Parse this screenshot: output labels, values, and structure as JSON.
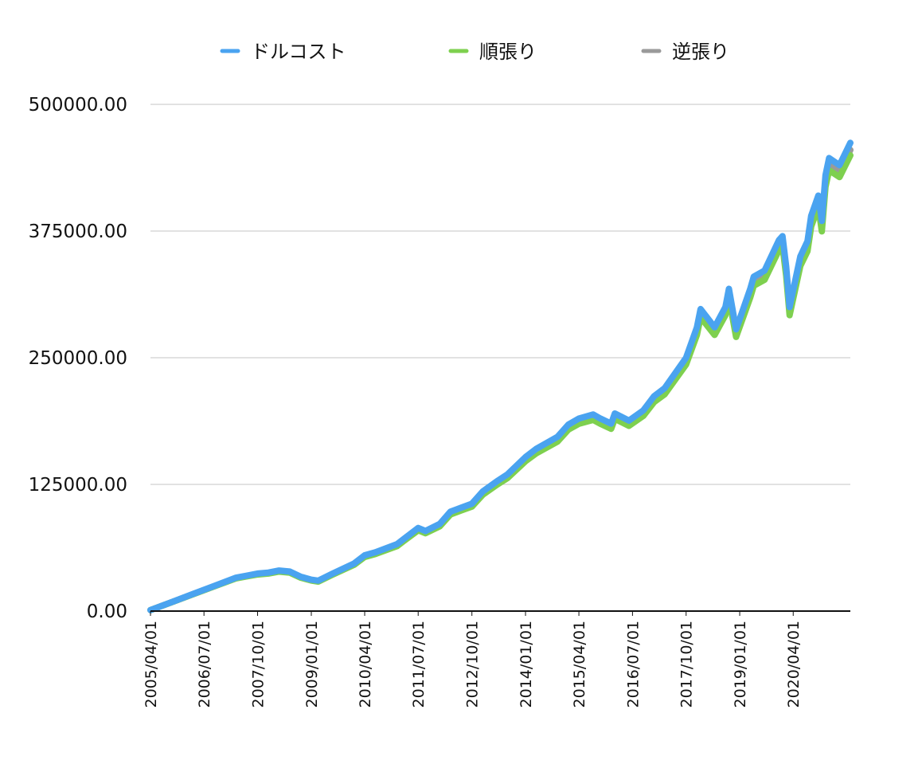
{
  "chart_data": {
    "type": "line",
    "title": "",
    "xlabel": "",
    "ylabel": "",
    "ylim": [
      0,
      500000
    ],
    "yticks": [
      0,
      125000,
      250000,
      375000,
      500000
    ],
    "ytick_labels": [
      "0.00",
      "125000.00",
      "250000.00",
      "375000.00",
      "500000.00"
    ],
    "xtick_labels": [
      "2005/04/01",
      "2006/07/01",
      "2007/10/01",
      "2009/01/01",
      "2010/04/01",
      "2011/07/01",
      "2012/10/01",
      "2014/01/01",
      "2015/04/01",
      "2016/07/01",
      "2017/10/01",
      "2019/01/01",
      "2020/04/01"
    ],
    "x_start": "2005/04/01",
    "x_end": "2021/08/01",
    "grid": true,
    "legend_position": "top",
    "series": [
      {
        "name": "ドルコスト",
        "color": "#4aa3f0",
        "x": [
          "2005/04/01",
          "2005/10/01",
          "2006/04/01",
          "2006/10/01",
          "2007/04/01",
          "2007/07/01",
          "2007/10/01",
          "2008/01/01",
          "2008/04/01",
          "2008/07/01",
          "2008/10/01",
          "2009/01/01",
          "2009/03/01",
          "2009/07/01",
          "2010/01/01",
          "2010/04/01",
          "2010/07/01",
          "2011/01/01",
          "2011/04/01",
          "2011/07/01",
          "2011/09/01",
          "2012/01/01",
          "2012/04/01",
          "2012/07/01",
          "2012/10/01",
          "2013/01/01",
          "2013/05/01",
          "2013/08/01",
          "2014/01/01",
          "2014/04/01",
          "2014/10/01",
          "2015/01/01",
          "2015/04/01",
          "2015/08/01",
          "2015/10/01",
          "2016/01/01",
          "2016/02/01",
          "2016/06/01",
          "2016/10/01",
          "2017/01/01",
          "2017/04/01",
          "2017/10/01",
          "2018/01/01",
          "2018/02/01",
          "2018/06/01",
          "2018/09/01",
          "2018/10/01",
          "2018/12/01",
          "2019/04/01",
          "2019/05/01",
          "2019/08/01",
          "2019/12/01",
          "2020/01/01",
          "2020/02/01",
          "2020/03/01",
          "2020/06/01",
          "2020/08/01",
          "2020/09/01",
          "2020/11/01",
          "2020/12/01",
          "2021/01/01",
          "2021/02/01",
          "2021/05/01",
          "2021/08/01"
        ],
        "values": [
          1000,
          9000,
          17000,
          25000,
          33000,
          35000,
          37000,
          38000,
          40000,
          39000,
          34000,
          31000,
          30000,
          37000,
          47000,
          55000,
          58000,
          66000,
          74000,
          82000,
          79000,
          86000,
          98000,
          102000,
          106000,
          118000,
          128000,
          135000,
          152000,
          160000,
          172000,
          184000,
          190000,
          194000,
          190000,
          185000,
          195000,
          188000,
          198000,
          212000,
          220000,
          250000,
          280000,
          298000,
          280000,
          300000,
          318000,
          278000,
          318000,
          330000,
          336000,
          366000,
          370000,
          340000,
          300000,
          350000,
          365000,
          390000,
          410000,
          385000,
          430000,
          447000,
          440000,
          462000
        ]
      },
      {
        "name": "順張り",
        "color": "#7ed04f",
        "x": [
          "2005/04/01",
          "2005/10/01",
          "2006/04/01",
          "2006/10/01",
          "2007/04/01",
          "2007/07/01",
          "2007/10/01",
          "2008/01/01",
          "2008/04/01",
          "2008/07/01",
          "2008/10/01",
          "2009/01/01",
          "2009/03/01",
          "2009/07/01",
          "2010/01/01",
          "2010/04/01",
          "2010/07/01",
          "2011/01/01",
          "2011/04/01",
          "2011/07/01",
          "2011/09/01",
          "2012/01/01",
          "2012/04/01",
          "2012/07/01",
          "2012/10/01",
          "2013/01/01",
          "2013/05/01",
          "2013/08/01",
          "2014/01/01",
          "2014/04/01",
          "2014/10/01",
          "2015/01/01",
          "2015/04/01",
          "2015/08/01",
          "2015/10/01",
          "2016/01/01",
          "2016/02/01",
          "2016/06/01",
          "2016/10/01",
          "2017/01/01",
          "2017/04/01",
          "2017/10/01",
          "2018/01/01",
          "2018/02/01",
          "2018/06/01",
          "2018/09/01",
          "2018/10/01",
          "2018/12/01",
          "2019/04/01",
          "2019/05/01",
          "2019/08/01",
          "2019/12/01",
          "2020/01/01",
          "2020/02/01",
          "2020/03/01",
          "2020/06/01",
          "2020/08/01",
          "2020/09/01",
          "2020/11/01",
          "2020/12/01",
          "2021/01/01",
          "2021/02/01",
          "2021/05/01",
          "2021/08/01"
        ],
        "values": [
          1000,
          8800,
          16700,
          24500,
          32300,
          34200,
          36100,
          37000,
          38900,
          37900,
          33000,
          30100,
          29100,
          35900,
          45700,
          53400,
          56300,
          64100,
          71900,
          79700,
          76800,
          83600,
          95300,
          99200,
          103100,
          114800,
          124500,
          131300,
          147900,
          155600,
          167300,
          179000,
          184800,
          188700,
          184800,
          179900,
          189700,
          182800,
          192600,
          206200,
          213900,
          243300,
          272500,
          290000,
          272500,
          292000,
          309500,
          270500,
          309500,
          321100,
          327000,
          356200,
          360100,
          330900,
          292000,
          340600,
          355200,
          379500,
          399000,
          374700,
          418500,
          435000,
          428200,
          449700
        ]
      },
      {
        "name": "逆張り",
        "color": "#9a9a9a",
        "x": [
          "2005/04/01",
          "2005/10/01",
          "2006/04/01",
          "2006/10/01",
          "2007/04/01",
          "2007/07/01",
          "2007/10/01",
          "2008/01/01",
          "2008/04/01",
          "2008/07/01",
          "2008/10/01",
          "2009/01/01",
          "2009/03/01",
          "2009/07/01",
          "2010/01/01",
          "2010/04/01",
          "2010/07/01",
          "2011/01/01",
          "2011/04/01",
          "2011/07/01",
          "2011/09/01",
          "2012/01/01",
          "2012/04/01",
          "2012/07/01",
          "2012/10/01",
          "2013/01/01",
          "2013/05/01",
          "2013/08/01",
          "2014/01/01",
          "2014/04/01",
          "2014/10/01",
          "2015/01/01",
          "2015/04/01",
          "2015/08/01",
          "2015/10/01",
          "2016/01/01",
          "2016/02/01",
          "2016/06/01",
          "2016/10/01",
          "2017/01/01",
          "2017/04/01",
          "2017/10/01",
          "2018/01/01",
          "2018/02/01",
          "2018/06/01",
          "2018/09/01",
          "2018/10/01",
          "2018/12/01",
          "2019/04/01",
          "2019/05/01",
          "2019/08/01",
          "2019/12/01",
          "2020/01/01",
          "2020/02/01",
          "2020/03/01",
          "2020/06/01",
          "2020/08/01",
          "2020/09/01",
          "2020/11/01",
          "2020/12/01",
          "2021/01/01",
          "2021/02/01",
          "2021/05/01",
          "2021/08/01"
        ],
        "values": [
          1000,
          8900,
          16800,
          24700,
          32600,
          34500,
          36500,
          37500,
          39400,
          38400,
          33500,
          30500,
          29600,
          36400,
          46300,
          54100,
          57100,
          65000,
          72900,
          80700,
          77800,
          84700,
          96500,
          100500,
          104400,
          116200,
          126100,
          133000,
          149700,
          157600,
          169400,
          181200,
          187100,
          191100,
          187100,
          182200,
          192100,
          185100,
          195000,
          208800,
          216700,
          246200,
          275800,
          293500,
          275800,
          295500,
          313200,
          273800,
          313200,
          325000,
          330900,
          360500,
          364400,
          334900,
          295500,
          344700,
          359500,
          384100,
          403800,
          379200,
          423500,
          440300,
          433400,
          455000
        ]
      }
    ]
  }
}
